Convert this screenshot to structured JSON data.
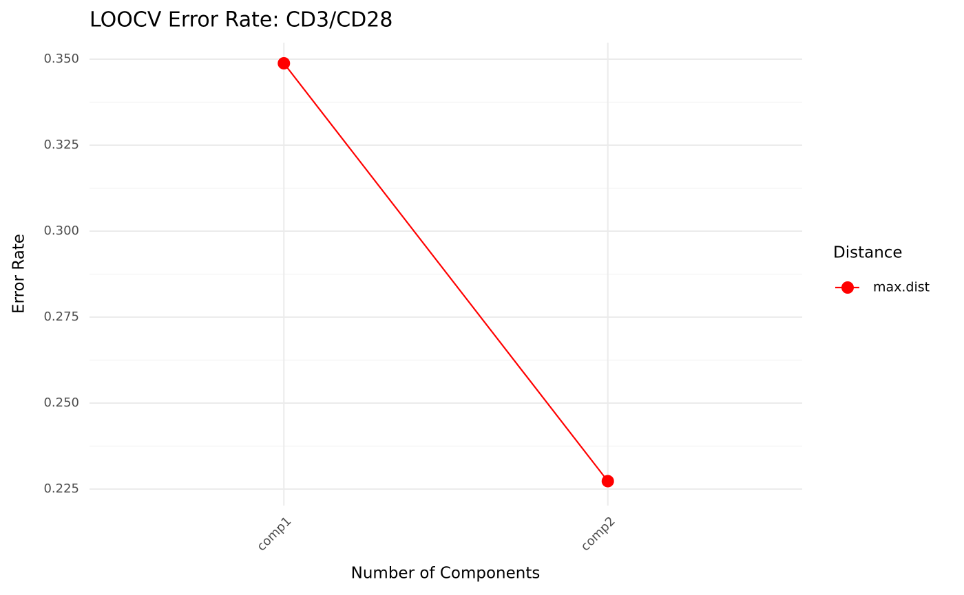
{
  "chart_data": {
    "type": "line",
    "title": "LOOCV Error Rate: CD3/CD28",
    "x_label": "Number of Components",
    "y_label": "Error Rate",
    "categories": [
      "comp1",
      "comp2"
    ],
    "series": [
      {
        "name": "max.dist",
        "color": "#ff0000",
        "values": [
          0.3488,
          0.2273
        ]
      }
    ],
    "legend_title": "Distance",
    "legend": "right",
    "ylim": [
      0.2202,
      0.3548
    ],
    "yticks": [
      {
        "value": 0.225,
        "label": "0.225"
      },
      {
        "value": 0.25,
        "label": "0.250"
      },
      {
        "value": 0.275,
        "label": "0.275"
      },
      {
        "value": 0.3,
        "label": "0.300"
      },
      {
        "value": 0.325,
        "label": "0.325"
      },
      {
        "value": 0.35,
        "label": "0.350"
      }
    ],
    "grid": true
  }
}
